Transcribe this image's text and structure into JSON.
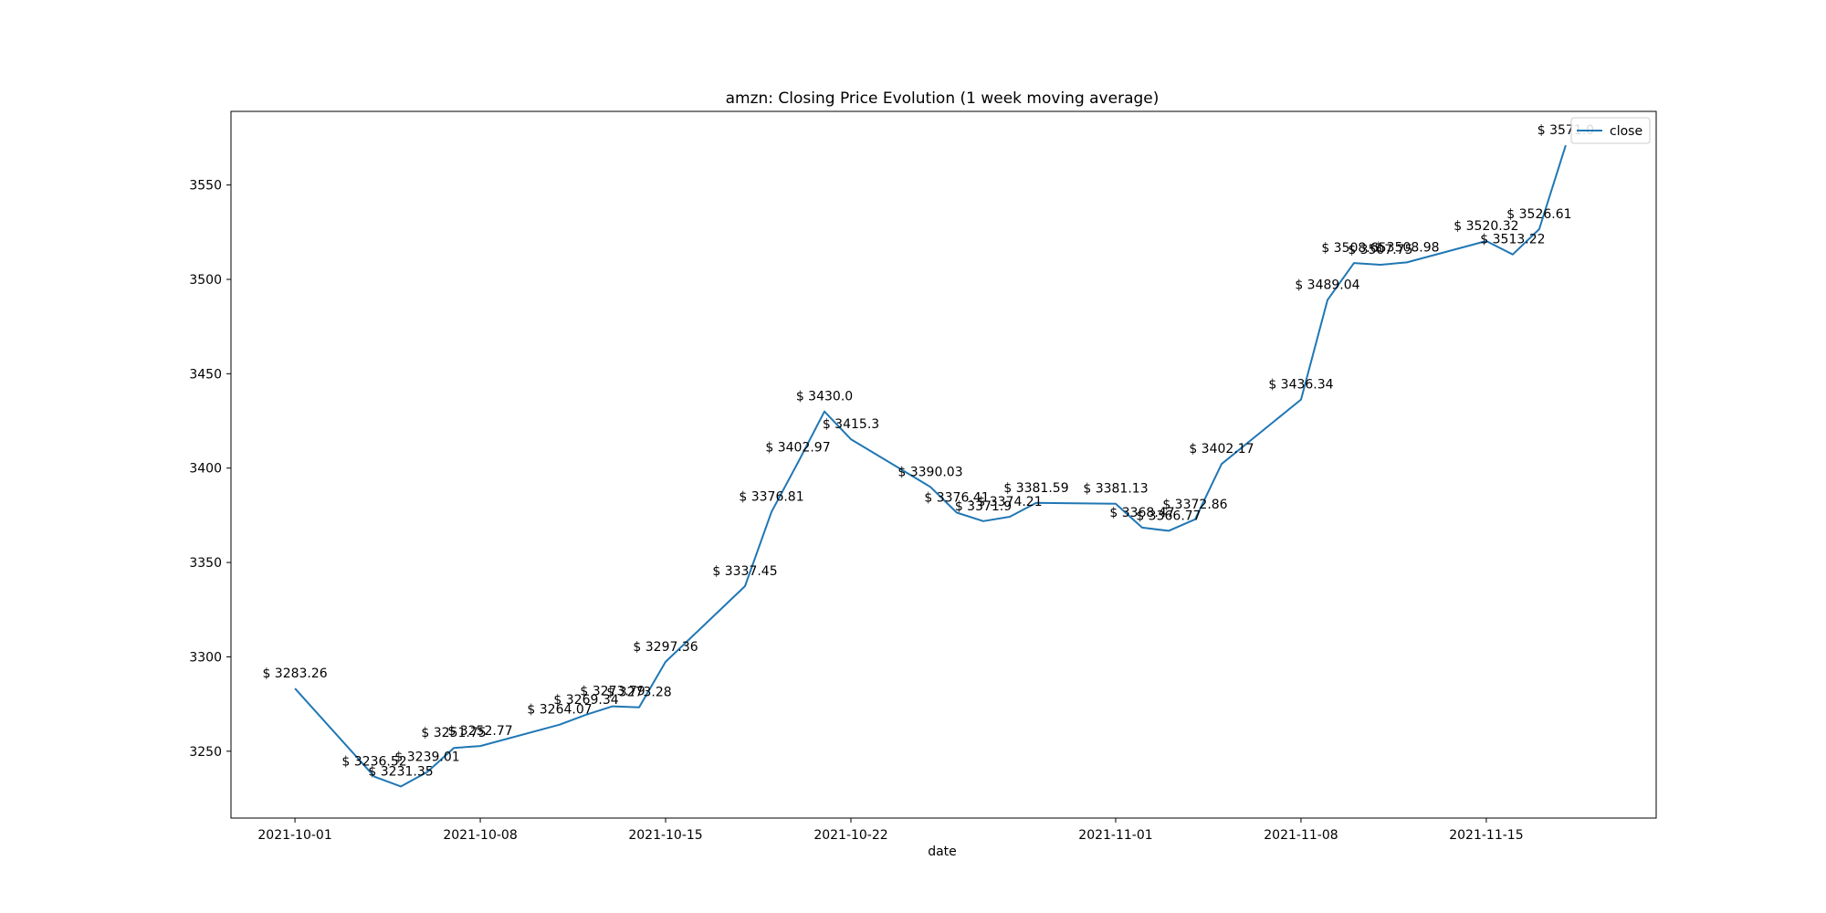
{
  "chart_data": {
    "type": "line",
    "title": "amzn: Closing Price Evolution (1 week moving average)",
    "xlabel": "date",
    "ylabel": "",
    "x_ticks": [
      "2021-10-01",
      "2021-10-08",
      "2021-10-15",
      "2021-10-22",
      "2021-11-01",
      "2021-11-08",
      "2021-11-15"
    ],
    "y_ticks": [
      3250,
      3300,
      3350,
      3400,
      3450,
      3500,
      3550
    ],
    "xlim": [
      "2021-09-28 14:00",
      "2021-11-21 10:00"
    ],
    "ylim": [
      3214.6,
      3589.0
    ],
    "legend": {
      "position": "top-right",
      "entries": [
        "close"
      ]
    },
    "label_prefix": "$ ",
    "series": [
      {
        "name": "close",
        "color": "#1f77b4",
        "points": [
          {
            "x": "2021-10-01",
            "y": 3283.26,
            "label": "3283.26"
          },
          {
            "x": "2021-10-04",
            "y": 3236.52,
            "label": "3236.52"
          },
          {
            "x": "2021-10-05",
            "y": 3231.35,
            "label": "3231.35"
          },
          {
            "x": "2021-10-06",
            "y": 3239.01,
            "label": "3239.01"
          },
          {
            "x": "2021-10-07",
            "y": 3251.75,
            "label": "3251.75"
          },
          {
            "x": "2021-10-08",
            "y": 3252.77,
            "label": "3252.77"
          },
          {
            "x": "2021-10-11",
            "y": 3264.07,
            "label": "3264.07"
          },
          {
            "x": "2021-10-12",
            "y": 3269.34,
            "label": "3269.34"
          },
          {
            "x": "2021-10-13",
            "y": 3273.79,
            "label": "3273.79"
          },
          {
            "x": "2021-10-14",
            "y": 3273.28,
            "label": "3273.28"
          },
          {
            "x": "2021-10-15",
            "y": 3297.36,
            "label": "3297.36"
          },
          {
            "x": "2021-10-18",
            "y": 3337.45,
            "label": "3337.45"
          },
          {
            "x": "2021-10-19",
            "y": 3376.81,
            "label": "3376.81"
          },
          {
            "x": "2021-10-20",
            "y": 3402.97,
            "label": "3402.97"
          },
          {
            "x": "2021-10-21",
            "y": 3430.0,
            "label": "3430.0"
          },
          {
            "x": "2021-10-22",
            "y": 3415.3,
            "label": "3415.3"
          },
          {
            "x": "2021-10-25",
            "y": 3390.03,
            "label": "3390.03"
          },
          {
            "x": "2021-10-26",
            "y": 3376.41,
            "label": "3376.41"
          },
          {
            "x": "2021-10-27",
            "y": 3371.9,
            "label": "3371.9"
          },
          {
            "x": "2021-10-28",
            "y": 3374.21,
            "label": "3374.21"
          },
          {
            "x": "2021-10-29",
            "y": 3381.59,
            "label": "3381.59"
          },
          {
            "x": "2021-11-01",
            "y": 3381.13,
            "label": "3381.13"
          },
          {
            "x": "2021-11-02",
            "y": 3368.47,
            "label": "3368.47"
          },
          {
            "x": "2021-11-03",
            "y": 3366.77,
            "label": "3366.77"
          },
          {
            "x": "2021-11-04",
            "y": 3372.86,
            "label": "3372.86"
          },
          {
            "x": "2021-11-05",
            "y": 3402.17,
            "label": "3402.17"
          },
          {
            "x": "2021-11-08",
            "y": 3436.34,
            "label": "3436.34"
          },
          {
            "x": "2021-11-09",
            "y": 3489.04,
            "label": "3489.04"
          },
          {
            "x": "2021-11-10",
            "y": 3508.65,
            "label": "3508.65"
          },
          {
            "x": "2021-11-11",
            "y": 3507.75,
            "label": "3507.75"
          },
          {
            "x": "2021-11-12",
            "y": 3508.98,
            "label": "3508.98"
          },
          {
            "x": "2021-11-15",
            "y": 3520.32,
            "label": "3520.32"
          },
          {
            "x": "2021-11-16",
            "y": 3513.22,
            "label": "3513.22"
          },
          {
            "x": "2021-11-17",
            "y": 3526.61,
            "label": "3526.61"
          },
          {
            "x": "2021-11-18",
            "y": 3571.0,
            "label": "3571.0"
          }
        ]
      }
    ]
  }
}
